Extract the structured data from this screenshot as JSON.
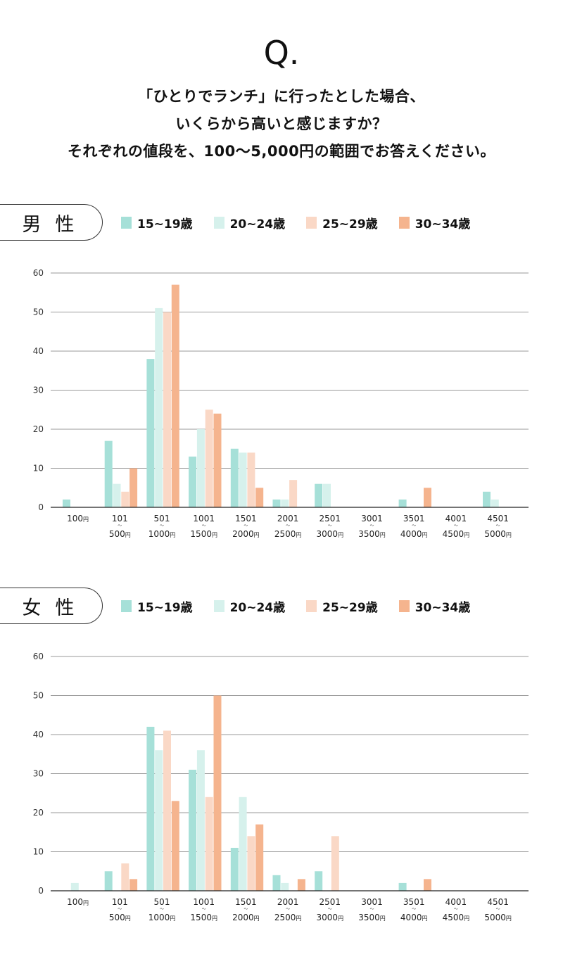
{
  "question": {
    "mark": "Q.",
    "lines": [
      "「ひとりでランチ」に行ったとした場合、",
      "いくらから高いと感じますか？",
      "それぞれの値段を、100〜5,000円の範囲でお答えください。"
    ]
  },
  "legend": {
    "items": [
      {
        "label": "15~19歳",
        "color": "#A6E0D8"
      },
      {
        "label": "20~24歳",
        "color": "#D6F1EC"
      },
      {
        "label": "25~29歳",
        "color": "#FAD8C6"
      },
      {
        "label": "30~34歳",
        "color": "#F5B48E"
      }
    ]
  },
  "sections": {
    "male": {
      "label": "男性"
    },
    "female": {
      "label": "女性"
    }
  },
  "chart_data": [
    {
      "type": "bar",
      "title": "男性",
      "categories": [
        "100円",
        "101〜500円",
        "501〜1000円",
        "1001〜1500円",
        "1501〜2000円",
        "2001〜2500円",
        "2501〜3000円",
        "3001〜3500円",
        "3501〜4000円",
        "4001〜4500円",
        "4501〜5000円"
      ],
      "category_labels": [
        {
          "top": "100",
          "bottom": ""
        },
        {
          "top": "101",
          "bottom": "500"
        },
        {
          "top": "501",
          "bottom": "1000"
        },
        {
          "top": "1001",
          "bottom": "1500"
        },
        {
          "top": "1501",
          "bottom": "2000"
        },
        {
          "top": "2001",
          "bottom": "2500"
        },
        {
          "top": "2501",
          "bottom": "3000"
        },
        {
          "top": "3001",
          "bottom": "3500"
        },
        {
          "top": "3501",
          "bottom": "4000"
        },
        {
          "top": "4001",
          "bottom": "4500"
        },
        {
          "top": "4501",
          "bottom": "5000"
        }
      ],
      "yen_suffix": "円",
      "range_mark": "〜",
      "series": [
        {
          "name": "15~19歳",
          "values": [
            2,
            17,
            38,
            13,
            15,
            2,
            6,
            0,
            2,
            0,
            4
          ]
        },
        {
          "name": "20~24歳",
          "values": [
            0,
            6,
            51,
            20,
            14,
            2,
            6,
            0,
            0,
            0,
            2
          ]
        },
        {
          "name": "25~29歳",
          "values": [
            0,
            4,
            50,
            25,
            14,
            7,
            0,
            0,
            0,
            0,
            0
          ]
        },
        {
          "name": "30~34歳",
          "values": [
            0,
            10,
            57,
            24,
            5,
            0,
            0,
            0,
            5,
            0,
            0
          ]
        }
      ],
      "ylim": [
        0,
        60
      ],
      "yticks": [
        0,
        10,
        20,
        30,
        40,
        50,
        60
      ],
      "grid": true,
      "legend_position": "top"
    },
    {
      "type": "bar",
      "title": "女性",
      "categories": [
        "100円",
        "101〜500円",
        "501〜1000円",
        "1001〜1500円",
        "1501〜2000円",
        "2001〜2500円",
        "2501〜3000円",
        "3001〜3500円",
        "3501〜4000円",
        "4001〜4500円",
        "4501〜5000円"
      ],
      "category_labels": [
        {
          "top": "100",
          "bottom": ""
        },
        {
          "top": "101",
          "bottom": "500"
        },
        {
          "top": "501",
          "bottom": "1000"
        },
        {
          "top": "1001",
          "bottom": "1500"
        },
        {
          "top": "1501",
          "bottom": "2000"
        },
        {
          "top": "2001",
          "bottom": "2500"
        },
        {
          "top": "2501",
          "bottom": "3000"
        },
        {
          "top": "3001",
          "bottom": "3500"
        },
        {
          "top": "3501",
          "bottom": "4000"
        },
        {
          "top": "4001",
          "bottom": "4500"
        },
        {
          "top": "4501",
          "bottom": "5000"
        }
      ],
      "yen_suffix": "円",
      "range_mark": "〜",
      "series": [
        {
          "name": "15~19歳",
          "values": [
            0,
            5,
            42,
            31,
            11,
            4,
            5,
            0,
            2,
            0,
            0
          ]
        },
        {
          "name": "20~24歳",
          "values": [
            2,
            0,
            36,
            36,
            24,
            2,
            0,
            0,
            0,
            0,
            0
          ]
        },
        {
          "name": "25~29歳",
          "values": [
            0,
            7,
            41,
            24,
            14,
            0,
            14,
            0,
            0,
            0,
            0
          ]
        },
        {
          "name": "30~34歳",
          "values": [
            0,
            3,
            23,
            50,
            17,
            3,
            0,
            0,
            3,
            0,
            0
          ]
        }
      ],
      "ylim": [
        0,
        60
      ],
      "yticks": [
        0,
        10,
        20,
        30,
        40,
        50,
        60
      ],
      "grid": true,
      "legend_position": "top"
    }
  ]
}
